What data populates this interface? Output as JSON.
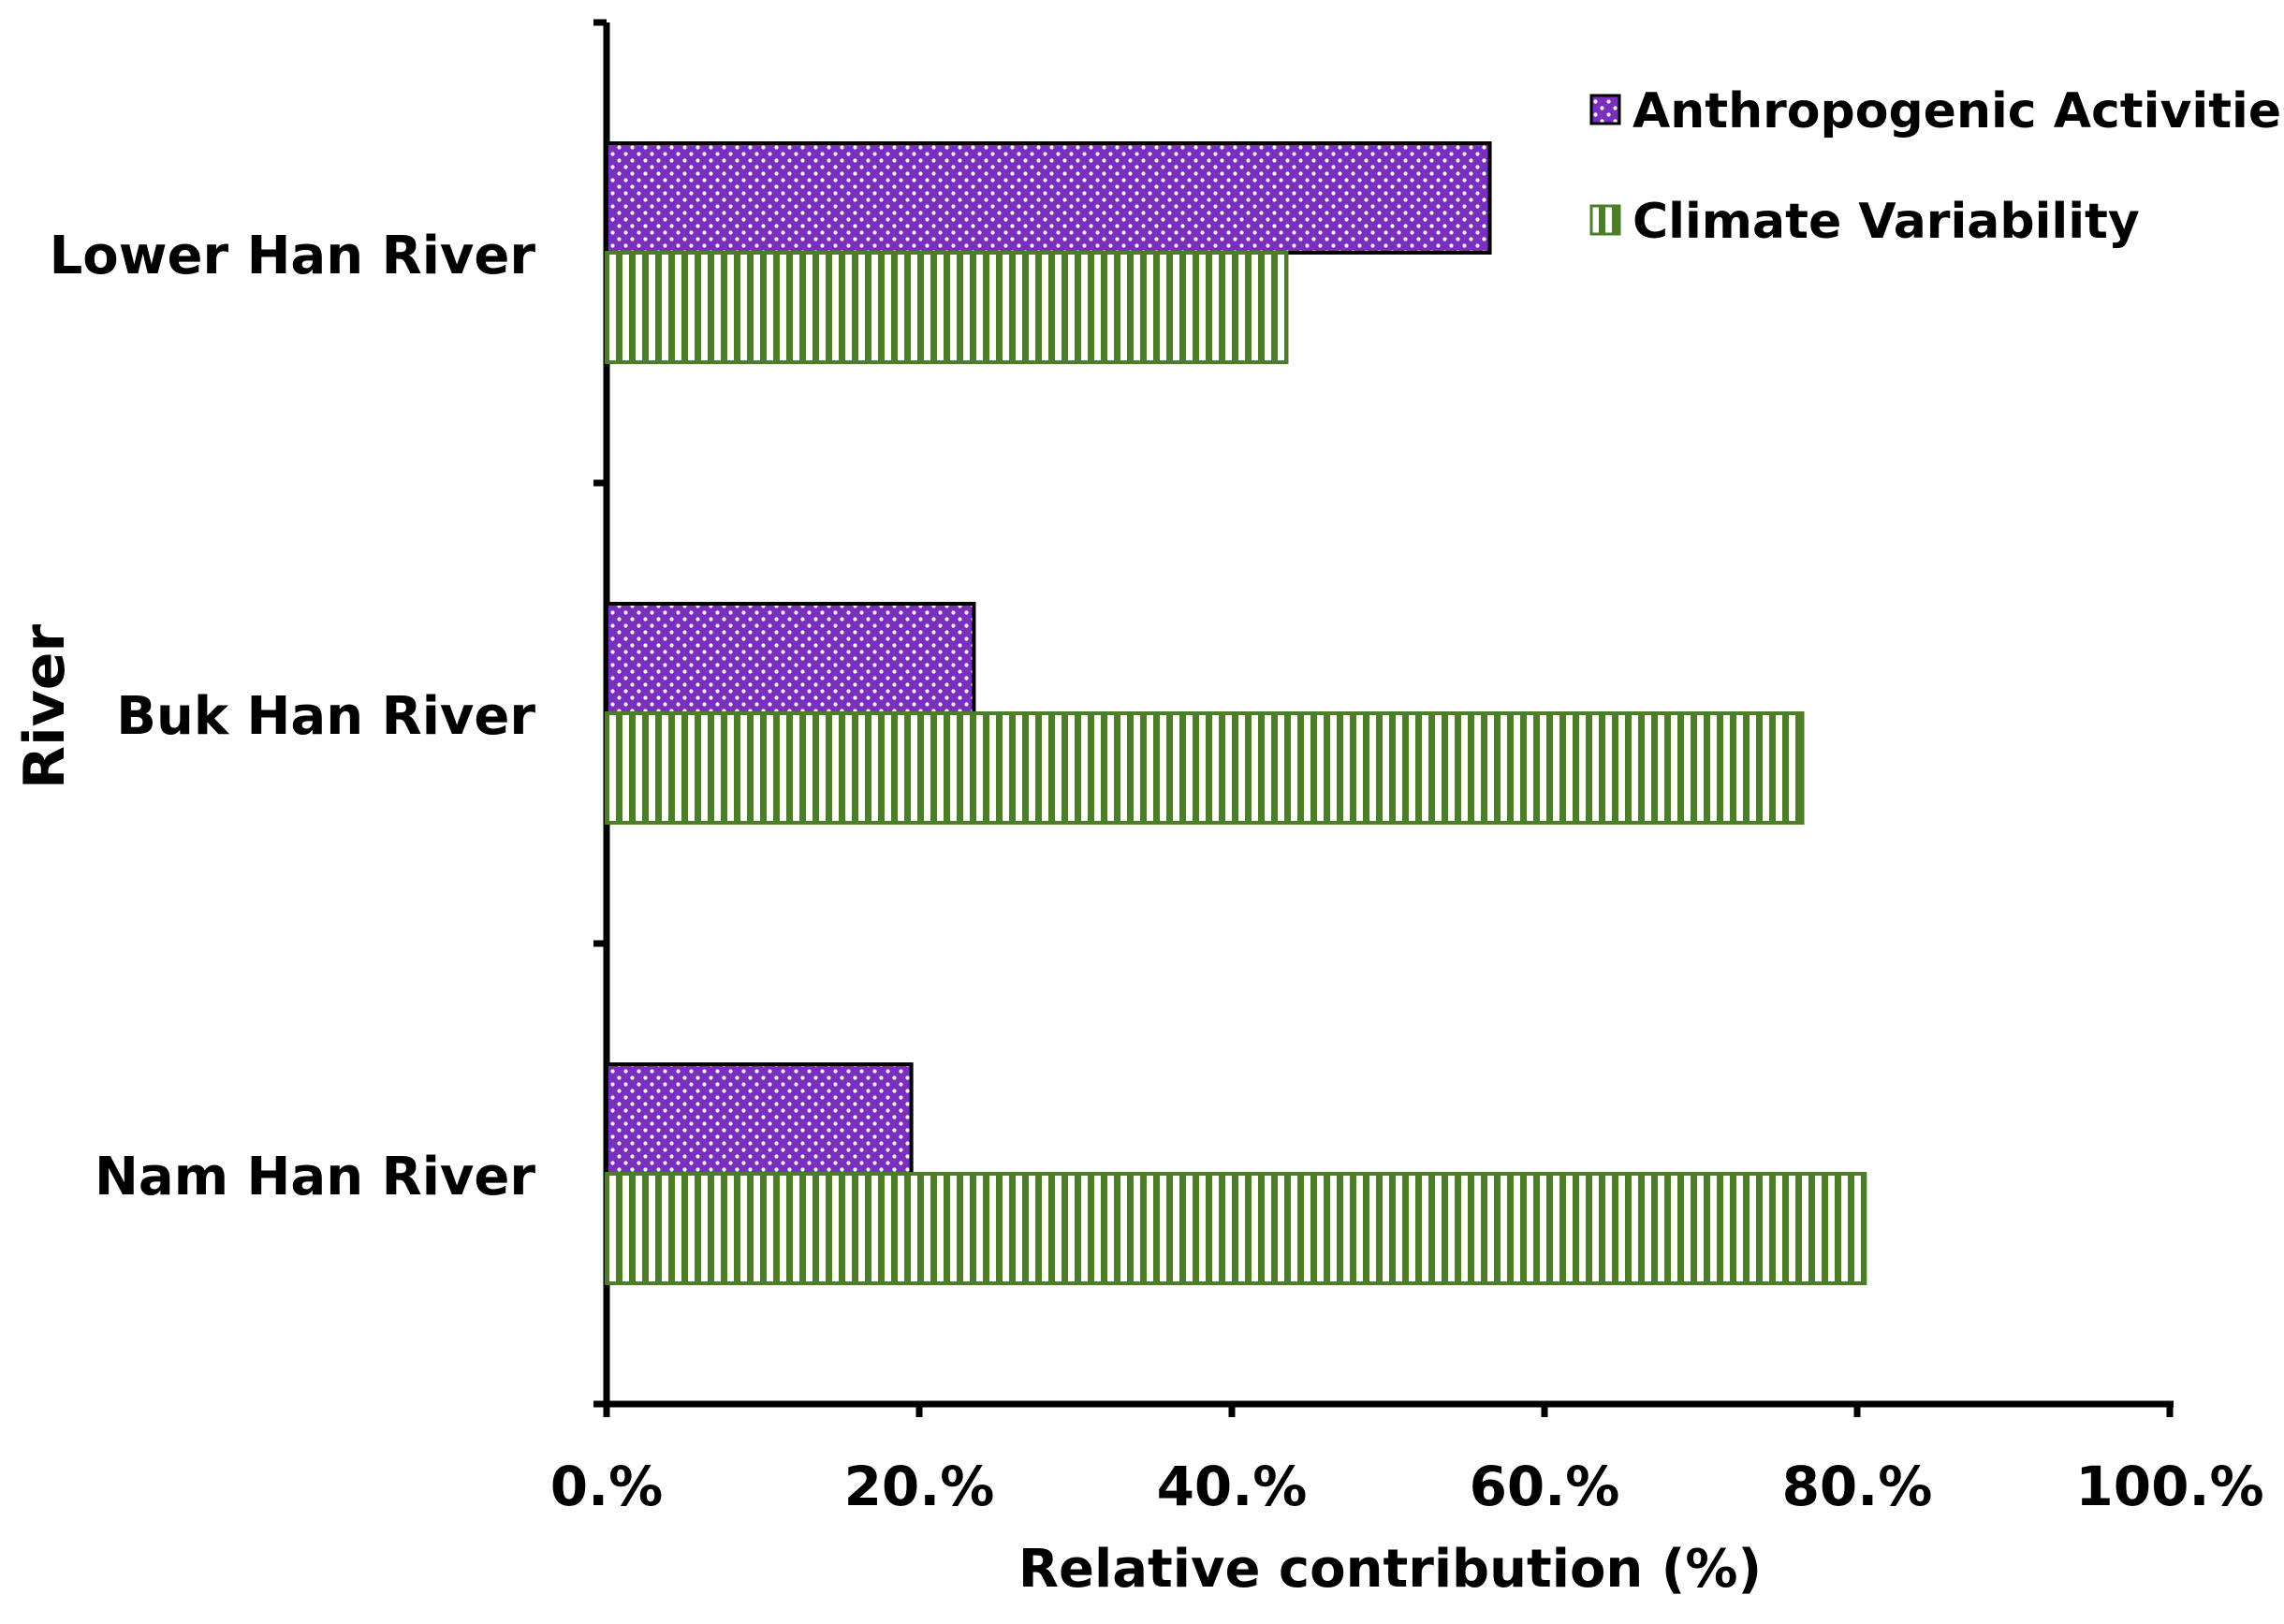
{
  "chart_data": {
    "type": "bar",
    "orientation": "horizontal",
    "categories": [
      "Lower Han River",
      "Buk Han River",
      "Nam Han River"
    ],
    "series": [
      {
        "name": "Anthropogenic Activities",
        "values": [
          56.5,
          23.5,
          19.5
        ],
        "color": "#7b2fbe",
        "pattern": "dots"
      },
      {
        "name": "Climate Variability",
        "values": [
          43.5,
          76.5,
          80.5
        ],
        "color": "#4e7d2a",
        "pattern": "vertical-stripes"
      }
    ],
    "xlabel": "Relative contribution (%)",
    "ylabel": "River",
    "xlim": [
      0,
      100
    ],
    "xticks": [
      "0.%",
      "20.%",
      "40.%",
      "60.%",
      "80.%",
      "100.%"
    ],
    "grid": false,
    "legend_position": "top-right"
  }
}
